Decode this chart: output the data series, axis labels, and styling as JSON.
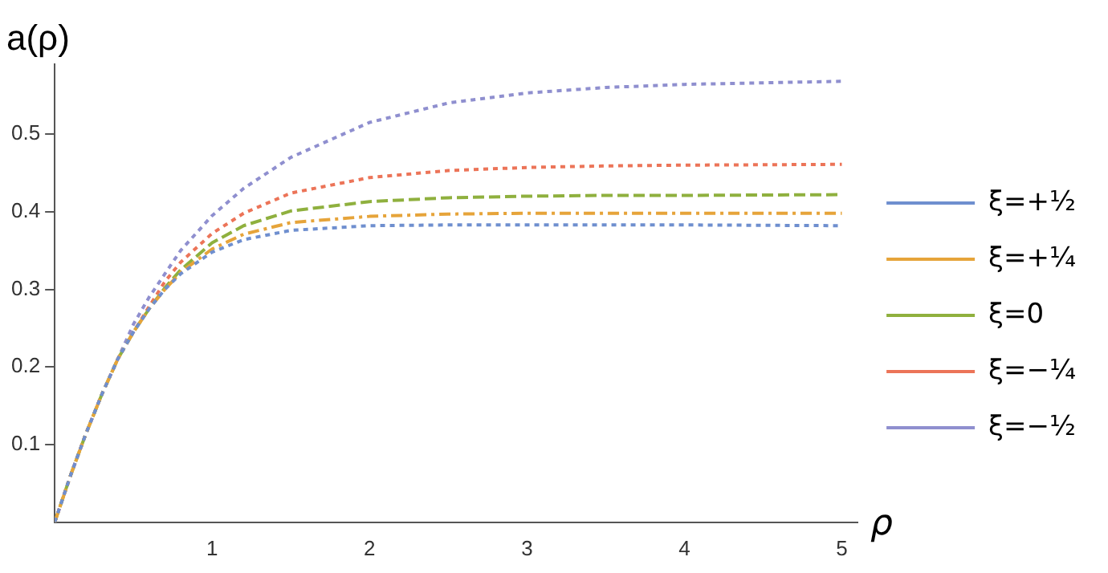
{
  "chart_data": {
    "type": "line",
    "xlabel": "ρ",
    "ylabel": "a(ρ)",
    "xlim": [
      0,
      5.1
    ],
    "ylim": [
      0,
      0.59
    ],
    "xticks": [
      1,
      2,
      3,
      4,
      5
    ],
    "yticks": [
      0.1,
      0.2,
      0.3,
      0.4,
      0.5
    ],
    "x": [
      0,
      0.1,
      0.2,
      0.3,
      0.4,
      0.5,
      0.6,
      0.7,
      0.8,
      1,
      1.2,
      1.5,
      2,
      2.5,
      3,
      3.5,
      4,
      5
    ],
    "legend": "right",
    "grid": false,
    "marker": "none",
    "series": [
      {
        "name": "ξ=+½",
        "color": "#6f8fcf",
        "line_style": "dotted",
        "values": [
          0,
          0.06,
          0.115,
          0.165,
          0.21,
          0.245,
          0.275,
          0.3,
          0.32,
          0.348,
          0.364,
          0.376,
          0.382,
          0.383,
          0.383,
          0.383,
          0.383,
          0.382
        ]
      },
      {
        "name": "ξ=+¼",
        "color": "#e6a43a",
        "line_style": "dashdot",
        "values": [
          0,
          0.06,
          0.115,
          0.165,
          0.21,
          0.245,
          0.275,
          0.3,
          0.322,
          0.352,
          0.371,
          0.386,
          0.394,
          0.397,
          0.398,
          0.398,
          0.398,
          0.398
        ]
      },
      {
        "name": "ξ=0",
        "color": "#8fb03e",
        "line_style": "dashed",
        "values": [
          0,
          0.06,
          0.115,
          0.165,
          0.21,
          0.245,
          0.275,
          0.302,
          0.325,
          0.36,
          0.382,
          0.401,
          0.413,
          0.418,
          0.42,
          0.421,
          0.421,
          0.422
        ]
      },
      {
        "name": "ξ=−¼",
        "color": "#ec7458",
        "line_style": "dotted",
        "values": [
          0,
          0.06,
          0.115,
          0.165,
          0.21,
          0.245,
          0.278,
          0.31,
          0.335,
          0.372,
          0.398,
          0.424,
          0.444,
          0.453,
          0.457,
          0.459,
          0.46,
          0.461
        ]
      },
      {
        "name": "ξ=−½",
        "color": "#8f8fcf",
        "line_style": "dotted",
        "values": [
          0,
          0.06,
          0.115,
          0.165,
          0.21,
          0.255,
          0.29,
          0.32,
          0.35,
          0.395,
          0.43,
          0.47,
          0.515,
          0.54,
          0.553,
          0.56,
          0.564,
          0.568
        ]
      }
    ]
  }
}
